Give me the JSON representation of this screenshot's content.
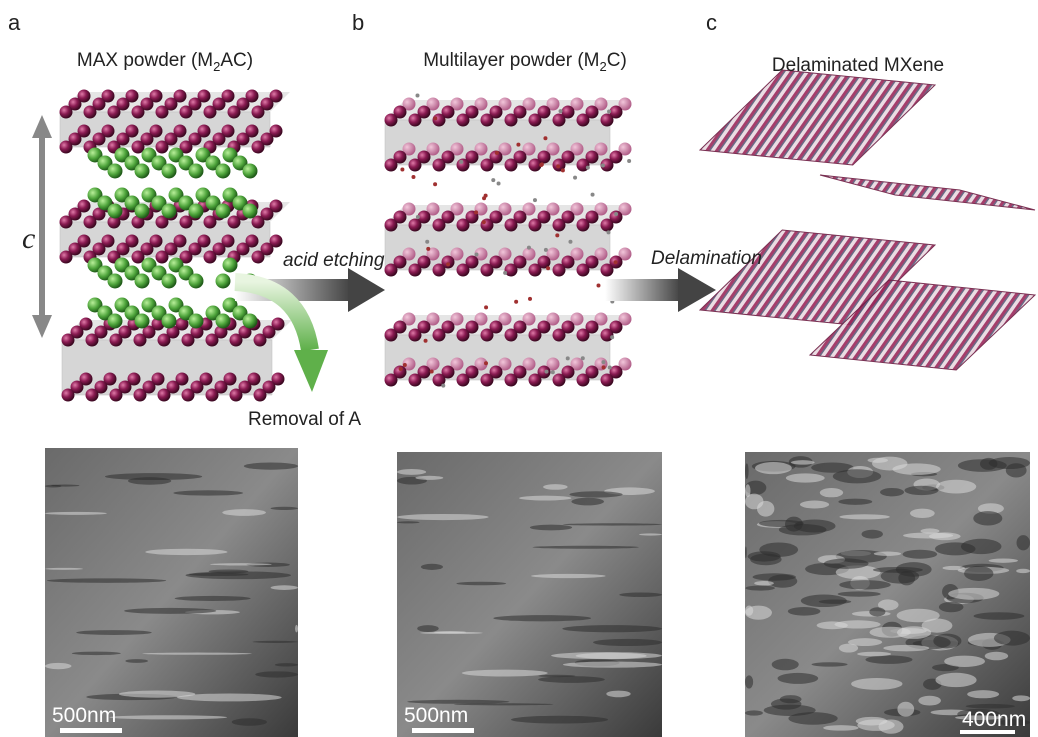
{
  "panels": [
    {
      "letter": "a",
      "title": {
        "text": "MAX powder (M",
        "sub": "2",
        "rest": "AC)"
      },
      "scale_bar": "500nm"
    },
    {
      "letter": "b",
      "title": {
        "text": "Multilayer powder (M",
        "sub": "2",
        "rest": "C)"
      },
      "scale_bar": "500nm"
    },
    {
      "letter": "c",
      "title": {
        "text": "Delaminated MXene"
      },
      "scale_bar": "400nm"
    }
  ],
  "labels": {
    "axis": "c",
    "step1": "acid etching",
    "step2": "Delamination",
    "removal": "Removal of A"
  }
}
